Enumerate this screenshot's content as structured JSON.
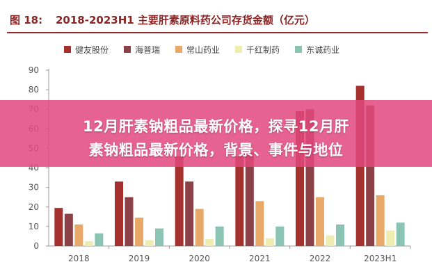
{
  "figure": {
    "label": "图 18:",
    "title": "2018-2023H1 主要肝素原料药公司存货金额（亿元）"
  },
  "overlay": {
    "line1": "12月肝素钠粗品最新价格，探寻12月肝",
    "line2": "素钠粗品最新价格，背景、事件与地位"
  },
  "colors": {
    "header": "#8b2525",
    "banner": "#e2487e"
  },
  "chart_data": {
    "type": "bar",
    "title": "",
    "xlabel": "",
    "ylabel": "",
    "ylim": [
      0,
      90
    ],
    "yticks": [
      0,
      10,
      20,
      30,
      40,
      50,
      60,
      70,
      80,
      90
    ],
    "grid": false,
    "legend_position": "top",
    "categories": [
      "2018",
      "2019",
      "2020",
      "2021",
      "2022",
      "2023H1"
    ],
    "series": [
      {
        "name": "健友股份",
        "color": "#a5312f",
        "values": [
          19.5,
          33,
          46,
          46,
          69,
          82
        ]
      },
      {
        "name": "海普瑞",
        "color": "#8c4048",
        "values": [
          16.5,
          25,
          33,
          48,
          70,
          72
        ]
      },
      {
        "name": "常山药业",
        "color": "#e8a868",
        "values": [
          11,
          14.5,
          19,
          23,
          25,
          26
        ]
      },
      {
        "name": "千红制药",
        "color": "#eeecb0",
        "values": [
          2.5,
          3,
          3.5,
          4,
          5.5,
          8
        ]
      },
      {
        "name": "东诚药业",
        "color": "#8cc4b4",
        "values": [
          6.5,
          9,
          10,
          10,
          11,
          12
        ]
      }
    ]
  }
}
